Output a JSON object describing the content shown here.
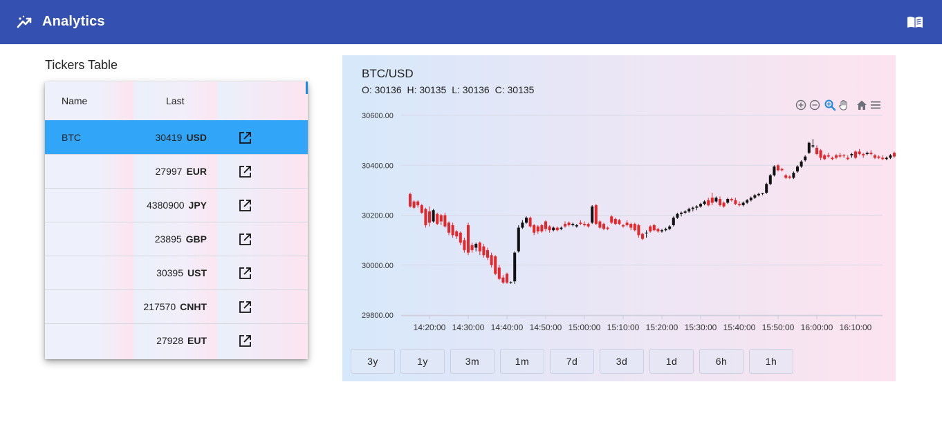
{
  "app": {
    "title": "Analytics",
    "logo_icon": "trending-up-icon",
    "docs_icon": "book-open-icon",
    "bar_color": "#3451b2"
  },
  "tickers": {
    "heading": "Tickers Table",
    "columns": {
      "name": "Name",
      "last": "Last"
    },
    "selected_color": "#31a6f8",
    "rows": [
      {
        "name": "BTC",
        "last": "30419",
        "currency": "USD",
        "selected": true
      },
      {
        "name": "",
        "last": "27997",
        "currency": "EUR"
      },
      {
        "name": "",
        "last": "4380900",
        "currency": "JPY"
      },
      {
        "name": "",
        "last": "23895",
        "currency": "GBP"
      },
      {
        "name": "",
        "last": "30395",
        "currency": "UST"
      },
      {
        "name": "",
        "last": "217570",
        "currency": "CNHT"
      },
      {
        "name": "",
        "last": "27928",
        "currency": "EUT"
      }
    ],
    "row_icon": "open-in-new-icon"
  },
  "chart": {
    "title": "BTC/USD",
    "ohlc": {
      "o": "O: 30136",
      "h": "H: 30135",
      "l": "L: 30136",
      "c": "C: 30135"
    },
    "toolbar_icons": [
      "zoom-in-icon",
      "zoom-out-icon",
      "selection-zoom-icon",
      "pan-hand-icon",
      "reset-home-icon",
      "menu-icon"
    ],
    "ranges": [
      "3y",
      "1y",
      "3m",
      "1m",
      "7d",
      "3d",
      "1d",
      "6h",
      "1h"
    ],
    "up_color": "#111111",
    "down_color": "#e5262a"
  },
  "chart_data": {
    "type": "candlestick",
    "title": "BTC/USD",
    "ylim": [
      29800,
      30600
    ],
    "y_ticks": [
      "30600.00",
      "30400.00",
      "30200.00",
      "30000.00",
      "29800.00"
    ],
    "x_ticks": [
      "14:20:00",
      "14:30:00",
      "14:40:00",
      "14:50:00",
      "15:00:00",
      "15:10:00",
      "15:20:00",
      "15:30:00",
      "15:40:00",
      "15:50:00",
      "16:00:00",
      "16:10:00"
    ],
    "grid": true,
    "x_start_minutes": 855,
    "x_step_minutes": 1,
    "candles": [
      [
        30285,
        30290,
        30230,
        30235
      ],
      [
        30255,
        30260,
        30225,
        30230
      ],
      [
        30255,
        30260,
        30230,
        30240
      ],
      [
        30240,
        30245,
        30205,
        30210
      ],
      [
        30225,
        30230,
        30150,
        30160
      ],
      [
        30215,
        30235,
        30155,
        30170
      ],
      [
        30175,
        30225,
        30170,
        30220
      ],
      [
        30205,
        30210,
        30160,
        30165
      ],
      [
        30200,
        30205,
        30160,
        30175
      ],
      [
        30200,
        30210,
        30150,
        30155
      ],
      [
        30170,
        30175,
        30120,
        30130
      ],
      [
        30160,
        30170,
        30110,
        30120
      ],
      [
        30135,
        30140,
        30105,
        30115
      ],
      [
        30130,
        30135,
        30080,
        30090
      ],
      [
        30100,
        30110,
        30050,
        30060
      ],
      [
        30160,
        30170,
        30040,
        30050
      ],
      [
        30080,
        30090,
        30050,
        30060
      ],
      [
        30070,
        30090,
        30055,
        30085
      ],
      [
        30090,
        30095,
        30040,
        30055
      ],
      [
        30075,
        30085,
        30030,
        30040
      ],
      [
        30060,
        30070,
        30020,
        30030
      ],
      [
        30040,
        30050,
        29990,
        30000
      ],
      [
        30035,
        30040,
        29960,
        29965
      ],
      [
        29990,
        30000,
        29940,
        29945
      ],
      [
        29950,
        29960,
        29925,
        29930
      ],
      [
        29965,
        29970,
        29925,
        29930
      ],
      [
        29930,
        29935,
        29925,
        29932
      ],
      [
        29935,
        30055,
        29925,
        30050
      ],
      [
        30055,
        30160,
        30050,
        30150
      ],
      [
        30150,
        30180,
        30145,
        30170
      ],
      [
        30170,
        30195,
        30165,
        30190
      ],
      [
        30190,
        30195,
        30150,
        30155
      ],
      [
        30160,
        30165,
        30120,
        30130
      ],
      [
        30155,
        30160,
        30125,
        30135
      ],
      [
        30160,
        30165,
        30130,
        30135
      ],
      [
        30175,
        30180,
        30135,
        30145
      ],
      [
        30155,
        30160,
        30130,
        30140
      ],
      [
        30140,
        30155,
        30135,
        30150
      ],
      [
        30150,
        30155,
        30135,
        30140
      ],
      [
        30145,
        30155,
        30140,
        30150
      ],
      [
        30165,
        30175,
        30150,
        30155
      ],
      [
        30170,
        30175,
        30155,
        30160
      ],
      [
        30160,
        30170,
        30155,
        30165
      ],
      [
        30155,
        30165,
        30150,
        30160
      ],
      [
        30170,
        30180,
        30160,
        30165
      ],
      [
        30165,
        30175,
        30155,
        30160
      ],
      [
        30165,
        30170,
        30150,
        30155
      ],
      [
        30170,
        30240,
        30165,
        30235
      ],
      [
        30240,
        30245,
        30160,
        30165
      ],
      [
        30175,
        30180,
        30145,
        30150
      ],
      [
        30165,
        30170,
        30140,
        30145
      ],
      [
        30150,
        30155,
        30140,
        30145
      ],
      [
        30195,
        30200,
        30165,
        30170
      ],
      [
        30185,
        30190,
        30160,
        30165
      ],
      [
        30180,
        30185,
        30160,
        30165
      ],
      [
        30160,
        30165,
        30150,
        30155
      ],
      [
        30170,
        30180,
        30155,
        30160
      ],
      [
        30165,
        30170,
        30140,
        30150
      ],
      [
        30165,
        30170,
        30135,
        30140
      ],
      [
        30160,
        30165,
        30110,
        30120
      ],
      [
        30125,
        30130,
        30100,
        30105
      ],
      [
        30130,
        30140,
        30110,
        30130
      ],
      [
        30155,
        30160,
        30130,
        30135
      ],
      [
        30160,
        30165,
        30135,
        30140
      ],
      [
        30145,
        30150,
        30130,
        30135
      ],
      [
        30135,
        30145,
        30130,
        30140
      ],
      [
        30140,
        30150,
        30135,
        30145
      ],
      [
        30145,
        30160,
        30140,
        30155
      ],
      [
        30160,
        30195,
        30155,
        30190
      ],
      [
        30190,
        30210,
        30185,
        30205
      ],
      [
        30205,
        30215,
        30195,
        30210
      ],
      [
        30210,
        30220,
        30205,
        30215
      ],
      [
        30215,
        30230,
        30210,
        30225
      ],
      [
        30225,
        30235,
        30215,
        30230
      ],
      [
        30230,
        30240,
        30220,
        30235
      ],
      [
        30235,
        30250,
        30230,
        30245
      ],
      [
        30245,
        30260,
        30240,
        30255
      ],
      [
        30260,
        30270,
        30235,
        30240
      ],
      [
        30270,
        30290,
        30240,
        30250
      ],
      [
        30255,
        30275,
        30250,
        30270
      ],
      [
        30265,
        30275,
        30235,
        30240
      ],
      [
        30250,
        30255,
        30230,
        30235
      ],
      [
        30250,
        30270,
        30245,
        30265
      ],
      [
        30265,
        30270,
        30255,
        30260
      ],
      [
        30260,
        30270,
        30240,
        30245
      ],
      [
        30245,
        30255,
        30235,
        30240
      ],
      [
        30240,
        30255,
        30235,
        30250
      ],
      [
        30250,
        30265,
        30245,
        30260
      ],
      [
        30260,
        30275,
        30255,
        30270
      ],
      [
        30270,
        30285,
        30265,
        30280
      ],
      [
        30280,
        30290,
        30275,
        30285
      ],
      [
        30285,
        30290,
        30280,
        30288
      ],
      [
        30290,
        30330,
        30285,
        30325
      ],
      [
        30325,
        30365,
        30320,
        30360
      ],
      [
        30360,
        30400,
        30355,
        30395
      ],
      [
        30400,
        30405,
        30375,
        30380
      ],
      [
        30385,
        30390,
        30375,
        30380
      ],
      [
        30360,
        30365,
        30345,
        30350
      ],
      [
        30355,
        30360,
        30345,
        30350
      ],
      [
        30350,
        30375,
        30345,
        30370
      ],
      [
        30375,
        30400,
        30370,
        30395
      ],
      [
        30395,
        30420,
        30390,
        30415
      ],
      [
        30420,
        30440,
        30415,
        30435
      ],
      [
        30450,
        30495,
        30445,
        30490
      ],
      [
        30475,
        30505,
        30470,
        30480
      ],
      [
        30470,
        30480,
        30440,
        30445
      ],
      [
        30460,
        30465,
        30420,
        30430
      ],
      [
        30440,
        30445,
        30420,
        30425
      ],
      [
        30440,
        30450,
        30430,
        30435
      ],
      [
        30430,
        30435,
        30420,
        30425
      ],
      [
        30440,
        30445,
        30425,
        30430
      ],
      [
        30440,
        30450,
        30430,
        30435
      ],
      [
        30440,
        30445,
        30430,
        30438
      ],
      [
        30430,
        30440,
        30420,
        30425
      ],
      [
        30440,
        30450,
        30430,
        30445
      ],
      [
        30455,
        30460,
        30425,
        30430
      ],
      [
        30455,
        30465,
        30440,
        30445
      ],
      [
        30445,
        30450,
        30430,
        30440
      ],
      [
        30445,
        30455,
        30440,
        30450
      ],
      [
        30450,
        30460,
        30440,
        30445
      ],
      [
        30440,
        30445,
        30425,
        30430
      ],
      [
        30435,
        30440,
        30425,
        30430
      ],
      [
        30430,
        30440,
        30420,
        30425
      ],
      [
        30425,
        30435,
        30420,
        30430
      ],
      [
        30430,
        30445,
        30425,
        30440
      ],
      [
        30450,
        30455,
        30430,
        30435
      ],
      [
        30440,
        30445,
        30425,
        30430
      ],
      [
        30440,
        30445,
        30430,
        30435
      ],
      [
        30460,
        30465,
        30420,
        30425
      ],
      [
        30475,
        30480,
        30460,
        30465
      ],
      [
        30475,
        30480,
        30465,
        30470
      ],
      [
        30470,
        30475,
        30440,
        30445
      ],
      [
        30460,
        30465,
        30440,
        30445
      ],
      [
        30455,
        30460,
        30430,
        30440
      ],
      [
        30450,
        30455,
        30425,
        30430
      ],
      [
        30440,
        30445,
        30400,
        30405
      ],
      [
        30420,
        30425,
        30385,
        30390
      ],
      [
        30405,
        30410,
        30395,
        30400
      ],
      [
        30405,
        30425,
        30400,
        30420
      ],
      [
        30420,
        30425,
        30415,
        30420
      ],
      [
        30420,
        30425,
        30415,
        30418
      ],
      [
        30420,
        30422,
        30415,
        30418
      ]
    ]
  }
}
